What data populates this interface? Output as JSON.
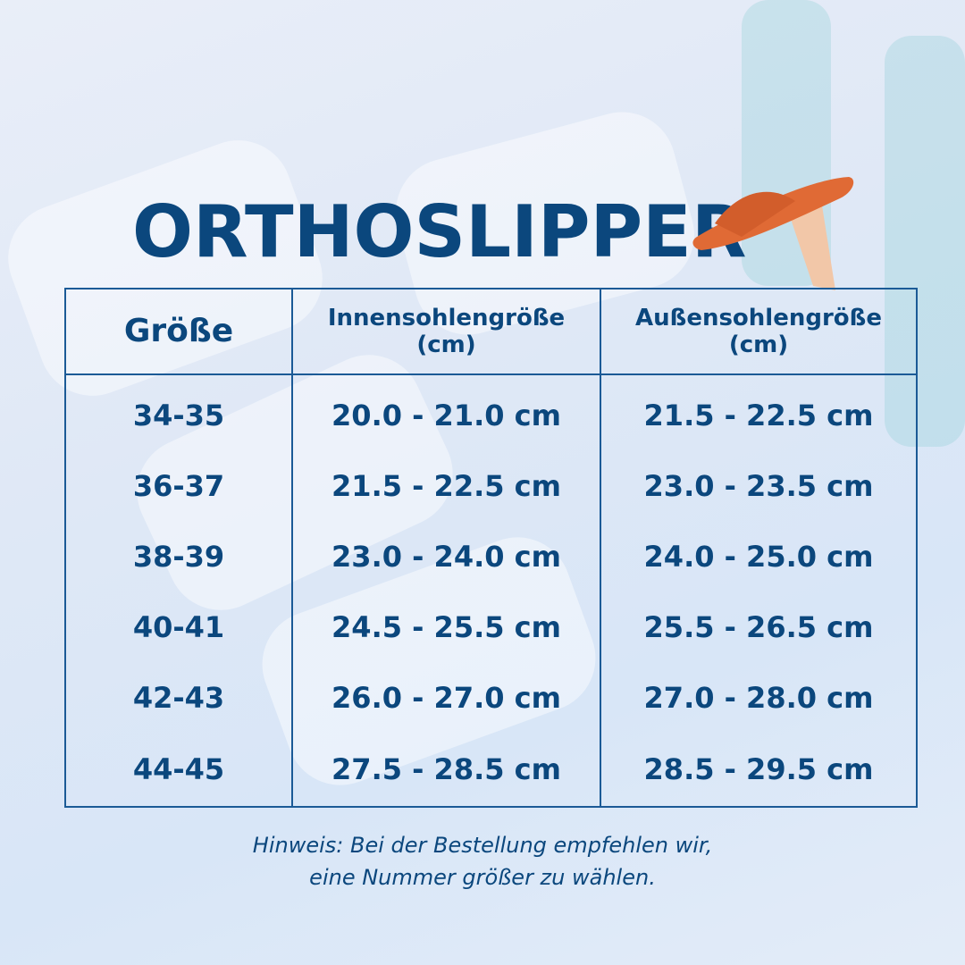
{
  "title": "ORTHOSLIPPER",
  "colors": {
    "primary": "#0b477d",
    "slipper": "#e06a35",
    "background": "#dfe8f6"
  },
  "table": {
    "headers": [
      {
        "line1": "Größe",
        "line2": ""
      },
      {
        "line1": "Innensohlengröße",
        "line2": "(cm)"
      },
      {
        "line1": "Außensohlengröße",
        "line2": "(cm)"
      }
    ],
    "rows": [
      [
        "34-35",
        "20.0 - 21.0 cm",
        "21.5 - 22.5 cm"
      ],
      [
        "36-37",
        "21.5 - 22.5 cm",
        "23.0 - 23.5 cm"
      ],
      [
        "38-39",
        "23.0 - 24.0 cm",
        "24.0 - 25.0 cm"
      ],
      [
        "40-41",
        "24.5 - 25.5 cm",
        "25.5 - 26.5 cm"
      ],
      [
        "42-43",
        "26.0 - 27.0 cm",
        "27.0 - 28.0 cm"
      ],
      [
        "44-45",
        "27.5 - 28.5 cm",
        "28.5 - 29.5 cm"
      ]
    ]
  },
  "note": {
    "line1": "Hinweis: Bei der Bestellung empfehlen wir,",
    "line2": "eine Nummer größer zu wählen."
  }
}
